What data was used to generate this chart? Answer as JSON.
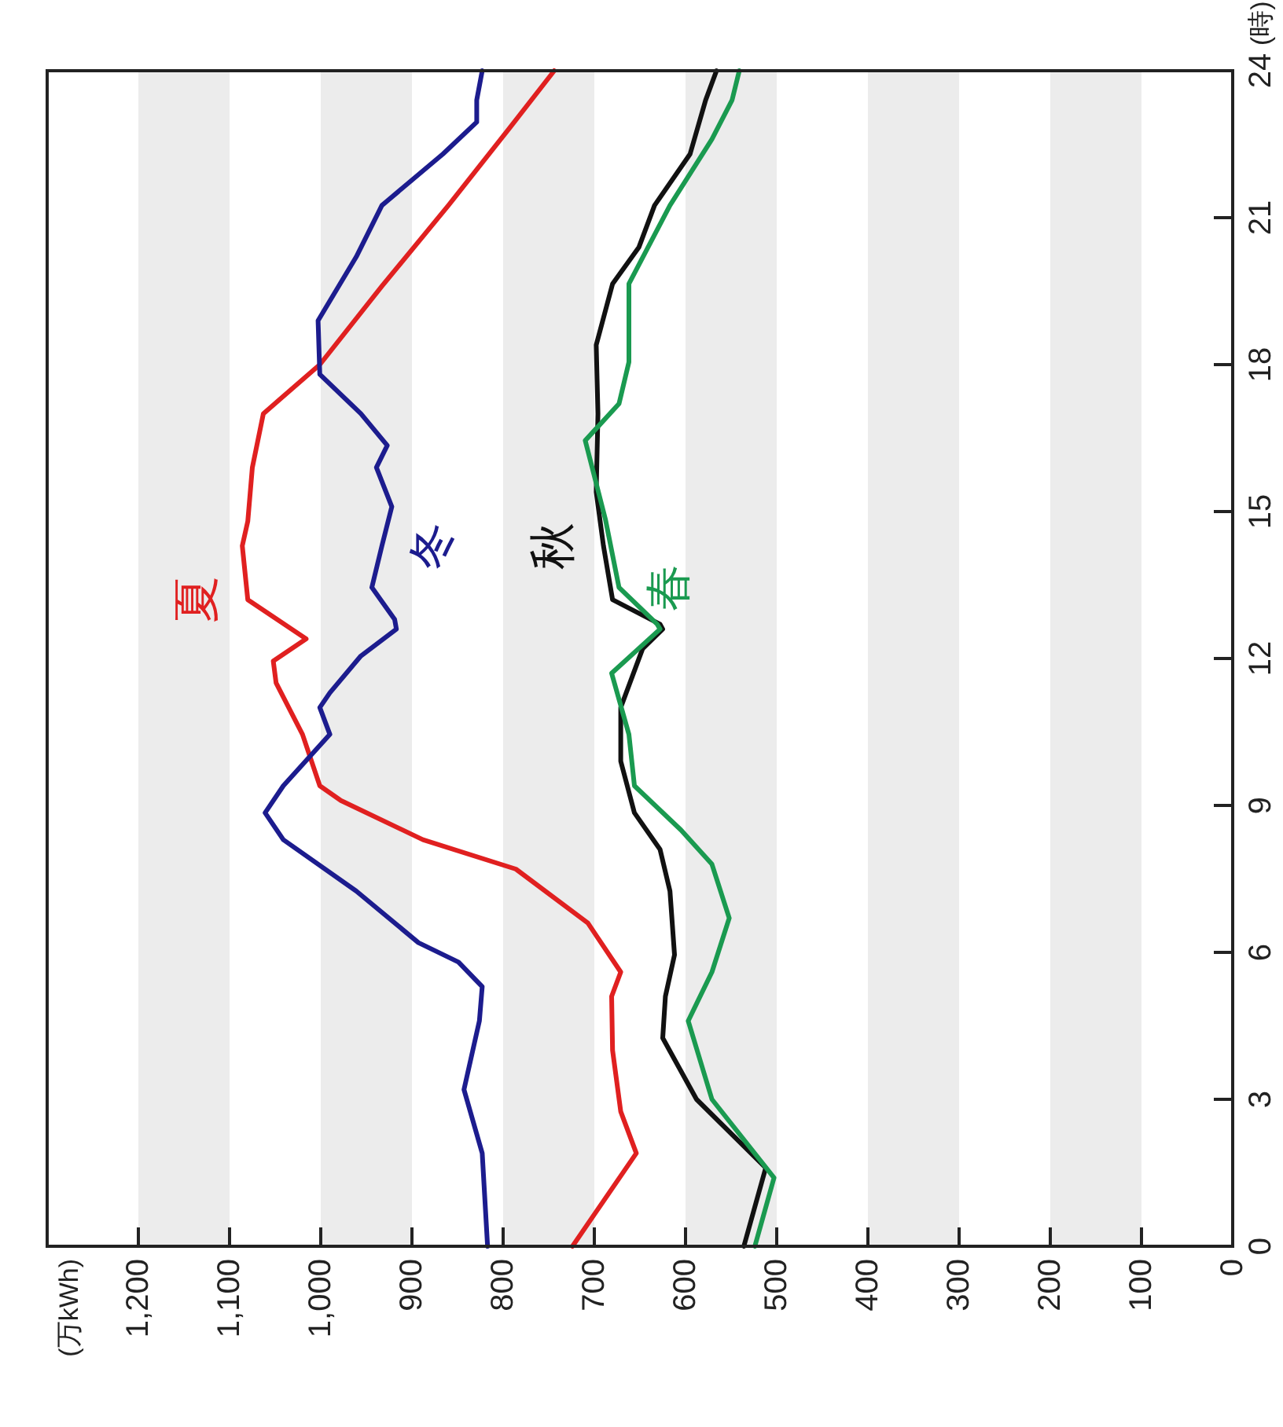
{
  "chart_data": {
    "type": "line",
    "annotations": [
      "(万kWh)"
    ],
    "ylabel": "(時)",
    "ylim": [
      0,
      24
    ],
    "yticks": [
      0,
      3,
      6,
      9,
      12,
      15,
      18,
      21,
      24
    ],
    "xlim": [
      1300,
      0
    ],
    "xticks": [
      0,
      100,
      200,
      300,
      400,
      500,
      600,
      700,
      800,
      900,
      {
        "value": 1000,
        "label": "1,000"
      },
      {
        "value": 1100,
        "label": "1,100"
      },
      {
        "value": 1200,
        "label": "1,200"
      }
    ],
    "bands": [
      {
        "axis": "x",
        "from": 100,
        "to": 200,
        "color": "#ececec"
      },
      {
        "axis": "x",
        "from": 300,
        "to": 400,
        "color": "#ececec"
      },
      {
        "axis": "x",
        "from": 500,
        "to": 600,
        "color": "#ececec"
      },
      {
        "axis": "x",
        "from": 700,
        "to": 800,
        "color": "#ececec"
      },
      {
        "axis": "x",
        "from": 900,
        "to": 1000,
        "color": "#ececec"
      },
      {
        "axis": "x",
        "from": 1100,
        "to": 1200,
        "color": "#ececec"
      }
    ],
    "grid": false,
    "marker": "none",
    "line_style": "solid",
    "series": [
      {
        "name": "夏",
        "color": "#e02020",
        "values": [
          0,
          1.9,
          2.75,
          4.0,
          5.1,
          5.6,
          6.6,
          7.7,
          8.3,
          9.1,
          9.4,
          10.45,
          11.5,
          11.95,
          12.4,
          13.2,
          14.3,
          14.8,
          15.9,
          17.0,
          18.0,
          19.6,
          21.25,
          22.85,
          24
        ],
        "x": [
          724,
          654,
          671,
          680,
          681,
          671,
          707,
          786,
          888,
          978,
          1001,
          1020,
          1049,
          1052,
          1016,
          1080,
          1086,
          1080,
          1075,
          1063,
          1001,
          933,
          860,
          792,
          744
        ]
      },
      {
        "name": "冬",
        "color": "#1c1c8e",
        "values": [
          0,
          1.9,
          3.2,
          4.6,
          5.3,
          5.8,
          6.2,
          7.25,
          8.3,
          8.85,
          9.4,
          10.45,
          11.0,
          11.3,
          12.05,
          12.6,
          12.8,
          13.45,
          14.3,
          15.1,
          15.9,
          16.35,
          17.0,
          17.8,
          18.9,
          20.2,
          21.25,
          22.3,
          22.95,
          23.4,
          24
        ],
        "x": [
          817,
          823,
          843,
          826,
          823,
          849,
          893,
          961,
          1041,
          1061,
          1041,
          990,
          1001,
          990,
          956,
          917,
          919,
          944,
          933,
          922,
          939,
          927,
          956,
          1001,
          1003,
          961,
          933,
          866,
          829,
          829,
          823
        ]
      },
      {
        "name": "秋",
        "color": "#111111",
        "values": [
          0,
          1.6,
          3.0,
          4.25,
          5.1,
          5.95,
          7.25,
          8.1,
          8.85,
          9.9,
          11.0,
          12.2,
          12.6,
          12.7,
          13.2,
          14.3,
          15.4,
          17.0,
          18.4,
          19.65,
          20.4,
          21.25,
          22.3,
          23.4,
          24
        ],
        "x": [
          536,
          512,
          588,
          625,
          622,
          612,
          617,
          628,
          656,
          671,
          671,
          647,
          625,
          628,
          680,
          690,
          698,
          696,
          698,
          680,
          651,
          634,
          595,
          578,
          566
        ]
      },
      {
        "name": "春",
        "color": "#1a9a50",
        "values": [
          0,
          1.4,
          3.0,
          4.6,
          5.6,
          6.7,
          7.8,
          8.5,
          9.4,
          10.45,
          11.7,
          12.6,
          12.7,
          13.45,
          14.85,
          16.45,
          17.2,
          18.05,
          19.65,
          21.25,
          22.6,
          23.4,
          24
        ],
        "x": [
          524,
          503,
          571,
          597,
          571,
          552,
          571,
          605,
          656,
          662,
          681,
          628,
          631,
          673,
          688,
          710,
          673,
          662,
          662,
          617,
          571,
          549,
          541
        ]
      }
    ]
  }
}
